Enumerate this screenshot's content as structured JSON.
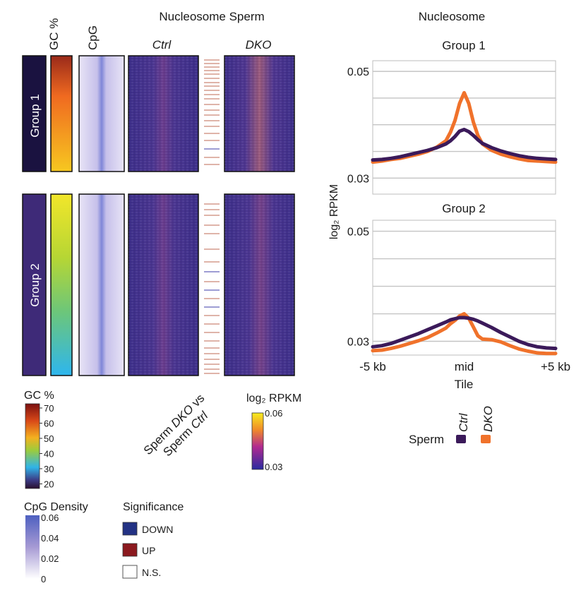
{
  "heatmap": {
    "title": "Nucleosome Sperm",
    "annot_labels": {
      "gc": "GC %",
      "cpg": "CpG"
    },
    "columns": {
      "ctrl": "Ctrl",
      "dko": "DKO"
    },
    "groups": {
      "g1": "Group 1",
      "g2": "Group 2"
    },
    "gc_legend": {
      "title": "GC %",
      "ticks": [
        "70",
        "60",
        "50",
        "40",
        "30",
        "20"
      ]
    },
    "rpkm_legend": {
      "title": "log₂ RPKM",
      "max": "0.06",
      "min": "0.03"
    },
    "comparison": {
      "pre": "Sperm ",
      "dko": "DKO",
      "vs": " vs",
      "pre2": "Sperm ",
      "ctrl": "Ctrl"
    },
    "cpg_legend": {
      "title": "CpG Density",
      "ticks": [
        "0.06",
        "0.04",
        "0.02",
        "0"
      ]
    },
    "significance": {
      "title": "Significance",
      "down": "DOWN",
      "up": "UP",
      "ns": "N.S."
    },
    "colors": {
      "down": "#233284",
      "up": "#8c1a1f",
      "ns": "#ffffff",
      "ctrl": "#3b1a5a",
      "dko": "#f0722b"
    }
  },
  "chart_data": {
    "type": "line",
    "title": "Nucleosome",
    "xlabel": "Tile",
    "ylabel": "log₂ RPKM",
    "x_ticks": [
      "-5 kb",
      "mid",
      "+5 kb"
    ],
    "legend": {
      "title": "Sperm",
      "entries": [
        "Ctrl",
        "DKO"
      ]
    },
    "x": [
      -5,
      -4.5,
      -4,
      -3.5,
      -3,
      -2.5,
      -2,
      -1.5,
      -1,
      -0.75,
      -0.5,
      -0.25,
      0,
      0.25,
      0.5,
      0.75,
      1,
      1.5,
      2,
      2.5,
      3,
      3.5,
      4,
      4.5,
      5
    ],
    "panels": [
      {
        "title": "Group 1",
        "ylim": [
          0.027,
          0.052
        ],
        "y_ticks": [
          "0.05",
          "0.03"
        ],
        "series": [
          {
            "name": "Ctrl",
            "values": [
              0.0334,
              0.0335,
              0.0337,
              0.034,
              0.0344,
              0.0348,
              0.0352,
              0.0357,
              0.0364,
              0.037,
              0.0378,
              0.0388,
              0.0391,
              0.0387,
              0.038,
              0.0372,
              0.0365,
              0.0357,
              0.0351,
              0.0346,
              0.0342,
              0.0339,
              0.0337,
              0.0336,
              0.0335
            ]
          },
          {
            "name": "DKO",
            "values": [
              0.033,
              0.0332,
              0.0335,
              0.0337,
              0.0341,
              0.0345,
              0.035,
              0.0358,
              0.037,
              0.0386,
              0.0408,
              0.044,
              0.046,
              0.044,
              0.0405,
              0.038,
              0.0364,
              0.0352,
              0.0345,
              0.034,
              0.0336,
              0.0333,
              0.0332,
              0.0331,
              0.033
            ]
          }
        ]
      },
      {
        "title": "Group 2",
        "ylim": [
          0.0275,
          0.052
        ],
        "y_ticks": [
          "0.05",
          "0.03"
        ],
        "series": [
          {
            "name": "Ctrl",
            "values": [
              0.029,
              0.0292,
              0.0296,
              0.0302,
              0.0308,
              0.0314,
              0.0321,
              0.0328,
              0.0335,
              0.0339,
              0.0341,
              0.0343,
              0.0343,
              0.0342,
              0.034,
              0.0337,
              0.0333,
              0.0325,
              0.0316,
              0.0308,
              0.03,
              0.0294,
              0.029,
              0.0288,
              0.0287
            ]
          },
          {
            "name": "DKO",
            "values": [
              0.0283,
              0.0284,
              0.0287,
              0.0291,
              0.0296,
              0.0301,
              0.0307,
              0.0315,
              0.0324,
              0.0332,
              0.0338,
              0.0346,
              0.035,
              0.0342,
              0.0326,
              0.031,
              0.0304,
              0.0303,
              0.0299,
              0.0292,
              0.0286,
              0.0282,
              0.0279,
              0.0278,
              0.0278
            ]
          }
        ]
      }
    ]
  }
}
